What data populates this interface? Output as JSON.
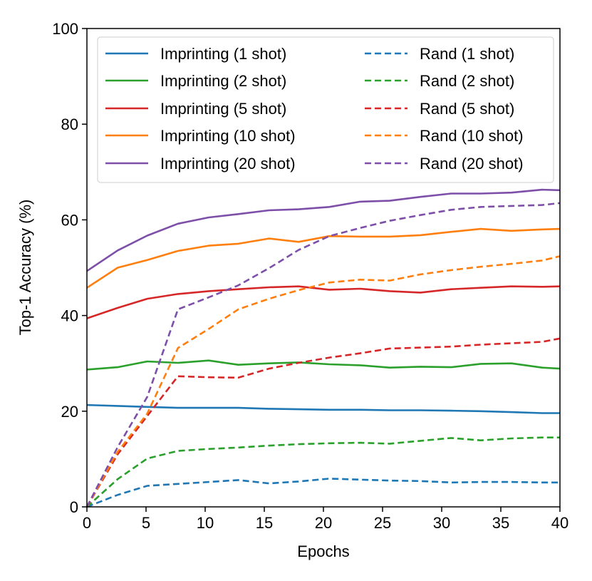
{
  "chart_data": {
    "type": "line",
    "title": "",
    "xlabel": "Epochs",
    "ylabel": "Top-1 Accuracy (%)",
    "xlim": [
      0,
      40
    ],
    "ylim": [
      0,
      100
    ],
    "xticks": [
      0,
      5,
      10,
      15,
      20,
      25,
      30,
      35,
      40
    ],
    "yticks": [
      0,
      20,
      40,
      60,
      80,
      100
    ],
    "grid": false,
    "legend_position": "top",
    "x": [
      0,
      2.6,
      5.1,
      7.7,
      10.3,
      12.8,
      15.4,
      17.9,
      20.5,
      23.1,
      25.6,
      28.2,
      30.8,
      33.3,
      35.9,
      38.5,
      40
    ],
    "series": [
      {
        "name": "Imprinting (1 shot)",
        "color": "#1f77b4",
        "style": "solid",
        "values": [
          21.3,
          21.1,
          20.9,
          20.7,
          20.7,
          20.7,
          20.5,
          20.4,
          20.3,
          20.3,
          20.2,
          20.2,
          20.1,
          20.0,
          19.8,
          19.6,
          19.6
        ]
      },
      {
        "name": "Imprinting (2 shot)",
        "color": "#2ca02c",
        "style": "solid",
        "values": [
          28.7,
          29.2,
          30.4,
          30.1,
          30.6,
          29.7,
          30.0,
          30.2,
          29.8,
          29.6,
          29.1,
          29.3,
          29.2,
          29.9,
          30.0,
          29.1,
          28.9
        ]
      },
      {
        "name": "Imprinting (5 shot)",
        "color": "#d62728",
        "style": "solid",
        "values": [
          39.4,
          41.6,
          43.5,
          44.5,
          45.1,
          45.5,
          45.9,
          46.1,
          45.4,
          45.6,
          45.1,
          44.8,
          45.5,
          45.8,
          46.1,
          46.0,
          46.1
        ]
      },
      {
        "name": "Imprinting (10 shot)",
        "color": "#ff7f0e",
        "style": "solid",
        "values": [
          45.8,
          50.0,
          51.6,
          53.5,
          54.6,
          55.0,
          56.1,
          55.4,
          56.6,
          56.5,
          56.5,
          56.8,
          57.5,
          58.1,
          57.7,
          58.0,
          58.1
        ]
      },
      {
        "name": "Imprinting (20 shot)",
        "color": "#7d4fa8",
        "style": "solid",
        "values": [
          49.3,
          53.6,
          56.7,
          59.2,
          60.5,
          61.2,
          62.0,
          62.2,
          62.7,
          63.8,
          64.0,
          64.8,
          65.5,
          65.5,
          65.7,
          66.3,
          66.2
        ]
      },
      {
        "name": "Rand (1 shot)",
        "color": "#1f77b4",
        "style": "dashed",
        "values": [
          0.0,
          2.5,
          4.4,
          4.8,
          5.2,
          5.6,
          4.9,
          5.3,
          5.9,
          5.7,
          5.5,
          5.4,
          5.1,
          5.2,
          5.2,
          5.1,
          5.1
        ]
      },
      {
        "name": "Rand (2 shot)",
        "color": "#2ca02c",
        "style": "dashed",
        "values": [
          0.0,
          5.8,
          10.1,
          11.7,
          12.1,
          12.4,
          12.8,
          13.1,
          13.3,
          13.4,
          13.2,
          13.8,
          14.4,
          13.9,
          14.3,
          14.5,
          14.5
        ]
      },
      {
        "name": "Rand (5 shot)",
        "color": "#d62728",
        "style": "dashed",
        "values": [
          0.0,
          11.0,
          19.0,
          27.3,
          27.1,
          27.0,
          28.9,
          30.1,
          31.2,
          32.1,
          33.1,
          33.3,
          33.5,
          33.9,
          34.2,
          34.5,
          35.2
        ]
      },
      {
        "name": "Rand (10 shot)",
        "color": "#ff7f0e",
        "style": "dashed",
        "values": [
          0.0,
          11.5,
          19.5,
          33.2,
          37.2,
          41.3,
          43.5,
          45.3,
          46.9,
          47.5,
          47.3,
          48.6,
          49.5,
          50.2,
          50.8,
          51.5,
          52.4
        ]
      },
      {
        "name": "Rand (20 shot)",
        "color": "#7d4fa8",
        "style": "dashed",
        "values": [
          0.0,
          12.5,
          23.0,
          41.3,
          43.8,
          46.3,
          49.9,
          53.7,
          56.6,
          58.3,
          59.8,
          61.0,
          62.1,
          62.7,
          62.9,
          63.1,
          63.5
        ]
      }
    ]
  }
}
